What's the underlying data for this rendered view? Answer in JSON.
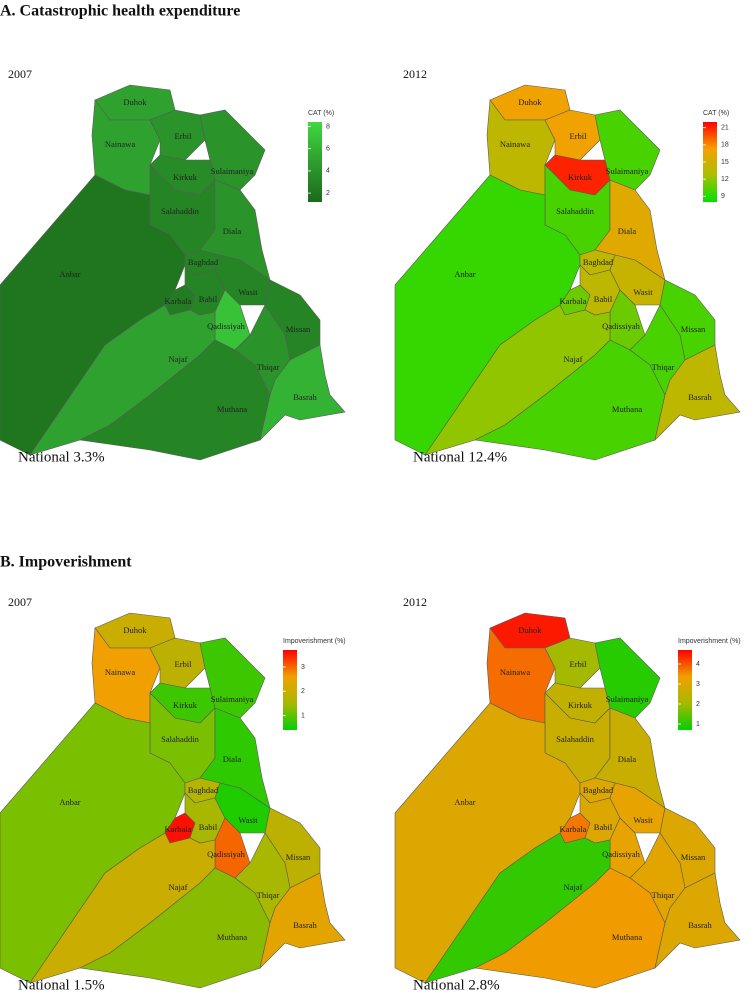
{
  "sections": [
    {
      "title": "A. Catastrophic health expenditure",
      "panels": [
        {
          "year": "2007",
          "legend_title": "CAT (%)",
          "legend_lim": [
            1.2,
            8.4
          ],
          "legend_ticks": [
            2,
            4,
            6,
            8
          ],
          "colors": [
            "#1b6b1b",
            "#2e9e2e",
            "#3fd93f"
          ],
          "regions": [
            {
              "name": "Duhok",
              "value": 5
            },
            {
              "name": "Nainawa",
              "value": 5
            },
            {
              "name": "Erbil",
              "value": 4
            },
            {
              "name": "Sulaimaniya",
              "value": 4
            },
            {
              "name": "Kirkuk",
              "value": 3.5
            },
            {
              "name": "Salahaddin",
              "value": 3
            },
            {
              "name": "Diala",
              "value": 4
            },
            {
              "name": "Anbar",
              "value": 2
            },
            {
              "name": "Baghdad",
              "value": 3
            },
            {
              "name": "Karbala",
              "value": 2.5
            },
            {
              "name": "Babil",
              "value": 3
            },
            {
              "name": "Wasit",
              "value": 3
            },
            {
              "name": "Qadissiyah",
              "value": 7
            },
            {
              "name": "Missan",
              "value": 3
            },
            {
              "name": "Najaf",
              "value": 5
            },
            {
              "name": "Thiqar",
              "value": 4
            },
            {
              "name": "Muthana",
              "value": 3
            },
            {
              "name": "Basrah",
              "value": 6
            }
          ],
          "national": "National 3.3%"
        },
        {
          "year": "2012",
          "legend_title": "CAT (%)",
          "legend_lim": [
            8,
            22
          ],
          "legend_ticks": [
            9,
            12,
            15,
            18,
            21
          ],
          "colors": [
            "#00e000",
            "#a8c000",
            "#f5a000",
            "#ff0000"
          ],
          "regions": [
            {
              "name": "Duhok",
              "value": 17
            },
            {
              "name": "Nainawa",
              "value": 14
            },
            {
              "name": "Erbil",
              "value": 17
            },
            {
              "name": "Sulaimaniya",
              "value": 10
            },
            {
              "name": "Kirkuk",
              "value": 21
            },
            {
              "name": "Salahaddin",
              "value": 10
            },
            {
              "name": "Diala",
              "value": 16
            },
            {
              "name": "Anbar",
              "value": 9.5
            },
            {
              "name": "Baghdad",
              "value": 14
            },
            {
              "name": "Karbala",
              "value": 11
            },
            {
              "name": "Babil",
              "value": 14
            },
            {
              "name": "Wasit",
              "value": 14.5
            },
            {
              "name": "Qadissiyah",
              "value": 11
            },
            {
              "name": "Missan",
              "value": 10
            },
            {
              "name": "Najaf",
              "value": 12
            },
            {
              "name": "Thiqar",
              "value": 10
            },
            {
              "name": "Muthana",
              "value": 10
            },
            {
              "name": "Basrah",
              "value": 14
            }
          ],
          "national": "National 12.4%"
        }
      ]
    },
    {
      "title": "B. Impoverishment",
      "panels": [
        {
          "year": "2007",
          "legend_title": "Impoverishment (%)",
          "legend_lim": [
            0.4,
            3.7
          ],
          "legend_ticks": [
            1,
            2,
            3
          ],
          "colors": [
            "#00d000",
            "#a8b800",
            "#f0a000",
            "#ff0000"
          ],
          "regions": [
            {
              "name": "Duhok",
              "value": 2
            },
            {
              "name": "Nainawa",
              "value": 2.6
            },
            {
              "name": "Erbil",
              "value": 1.8
            },
            {
              "name": "Sulaimaniya",
              "value": 0.8
            },
            {
              "name": "Kirkuk",
              "value": 0.8
            },
            {
              "name": "Salahaddin",
              "value": 1.2
            },
            {
              "name": "Diala",
              "value": 0.7
            },
            {
              "name": "Anbar",
              "value": 1.2
            },
            {
              "name": "Baghdad",
              "value": 1.7
            },
            {
              "name": "Karbala",
              "value": 3.6
            },
            {
              "name": "Babil",
              "value": 1.5
            },
            {
              "name": "Wasit",
              "value": 0.6
            },
            {
              "name": "Qadissiyah",
              "value": 3
            },
            {
              "name": "Missan",
              "value": 1.8
            },
            {
              "name": "Najaf",
              "value": 2
            },
            {
              "name": "Thiqar",
              "value": 1.5
            },
            {
              "name": "Muthana",
              "value": 1.3
            },
            {
              "name": "Basrah",
              "value": 2.4
            }
          ],
          "national": "National 1.5%"
        },
        {
          "year": "2012",
          "legend_title": "Impoverishment (%)",
          "legend_lim": [
            0.7,
            4.7
          ],
          "legend_ticks": [
            1,
            2,
            3,
            4
          ],
          "colors": [
            "#00d000",
            "#a8b800",
            "#f0a000",
            "#ff0000"
          ],
          "regions": [
            {
              "name": "Duhok",
              "value": 4.5
            },
            {
              "name": "Nainawa",
              "value": 3.8
            },
            {
              "name": "Erbil",
              "value": 2
            },
            {
              "name": "Sulaimaniya",
              "value": 1
            },
            {
              "name": "Kirkuk",
              "value": 2.5
            },
            {
              "name": "Salahaddin",
              "value": 2.6
            },
            {
              "name": "Diala",
              "value": 2.6
            },
            {
              "name": "Anbar",
              "value": 3
            },
            {
              "name": "Baghdad",
              "value": 3
            },
            {
              "name": "Karbala",
              "value": 3.7
            },
            {
              "name": "Babil",
              "value": 3
            },
            {
              "name": "Wasit",
              "value": 3.2
            },
            {
              "name": "Qadissiyah",
              "value": 3.2
            },
            {
              "name": "Missan",
              "value": 3
            },
            {
              "name": "Najaf",
              "value": 1.1
            },
            {
              "name": "Thiqar",
              "value": 3.1
            },
            {
              "name": "Muthana",
              "value": 3.4
            },
            {
              "name": "Basrah",
              "value": 3
            }
          ],
          "national": "National 2.8%"
        }
      ]
    }
  ]
}
